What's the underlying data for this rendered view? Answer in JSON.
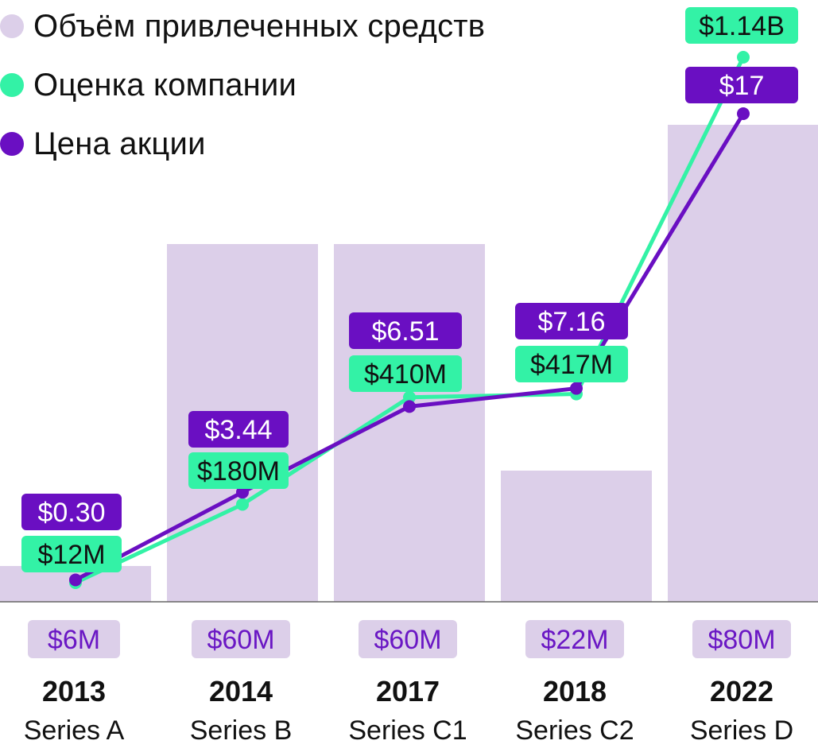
{
  "colors": {
    "raised": "#dccfe9",
    "raised_text": "#6a17c4",
    "valuation": "#33f2a6",
    "share_price": "#6a0fc2",
    "axis": "#666666",
    "text": "#111111"
  },
  "legend": [
    {
      "label": "Объём привлеченных средств",
      "color": "#dccfe9"
    },
    {
      "label": "Оценка компании",
      "color": "#33f2a6"
    },
    {
      "label": "Цена акции",
      "color": "#6a0fc2"
    }
  ],
  "chart_data": {
    "type": "bar",
    "categories": [
      "2013",
      "2014",
      "2017",
      "2018",
      "2022"
    ],
    "rounds": [
      "Series A",
      "Series B",
      "Series C1",
      "Series C2",
      "Series D"
    ],
    "series": [
      {
        "name": "Объём привлеченных средств",
        "type": "bar",
        "values": [
          6,
          60,
          60,
          22,
          80
        ],
        "labels": [
          "$6M",
          "$60M",
          "$60M",
          "$22M",
          "$80M"
        ]
      },
      {
        "name": "Оценка компании",
        "type": "line",
        "values": [
          12,
          180,
          410,
          417,
          1140
        ],
        "labels": [
          "$12M",
          "$180M",
          "$410M",
          "$417M",
          "$1.14B"
        ]
      },
      {
        "name": "Цена акции",
        "type": "line",
        "values": [
          0.3,
          3.44,
          6.51,
          7.16,
          17
        ],
        "labels": [
          "$0.30",
          "$3.44",
          "$6.51",
          "$7.16",
          "$17"
        ]
      }
    ]
  }
}
